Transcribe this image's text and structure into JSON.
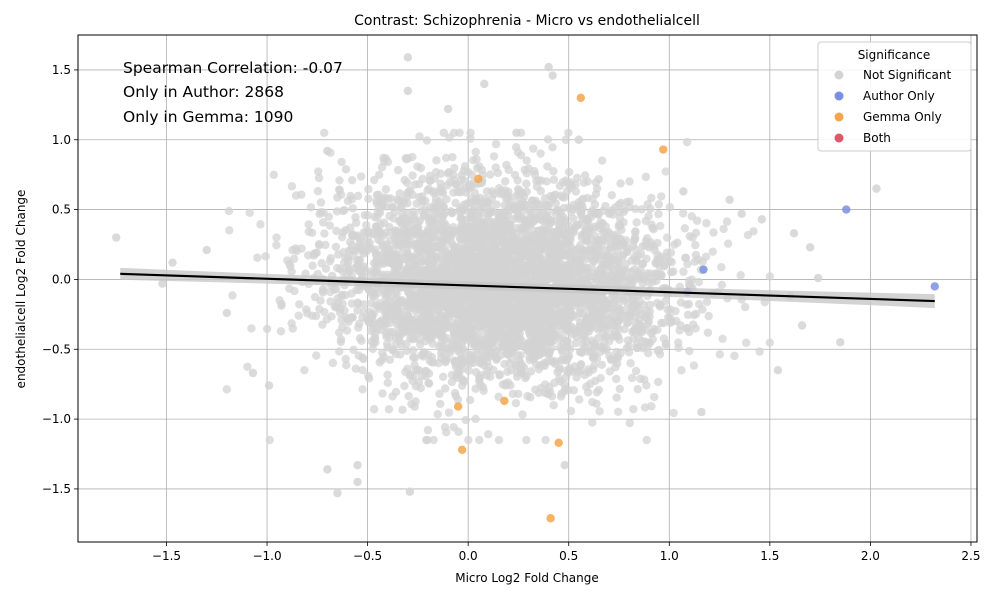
{
  "chart_data": {
    "type": "scatter",
    "title": "Contrast: Schizophrenia - Micro vs endothelialcell",
    "xlabel": "Micro Log2 Fold Change",
    "ylabel": "endothelialcell Log2 Fold Change",
    "xlim": [
      -1.94,
      2.53
    ],
    "ylim": [
      -1.88,
      1.75
    ],
    "xticks": [
      -1.5,
      -1.0,
      -0.5,
      0.0,
      0.5,
      1.0,
      1.5,
      2.0,
      2.5
    ],
    "xtick_labels": [
      "−1.5",
      "−1.0",
      "−0.5",
      "0.0",
      "0.5",
      "1.0",
      "1.5",
      "2.0",
      "2.5"
    ],
    "yticks": [
      -1.5,
      -1.0,
      -0.5,
      0.0,
      0.5,
      1.0,
      1.5
    ],
    "ytick_labels": [
      "−1.5",
      "−1.0",
      "−0.5",
      "0.0",
      "0.5",
      "1.0",
      "1.5"
    ],
    "grid": true,
    "annotations": [
      "Spearman Correlation: -0.07",
      "Only in Author: 2868",
      "Only in Gemma: 1090"
    ],
    "legend": {
      "title": "Significance",
      "placement": "top-right",
      "entries": [
        "Not Significant",
        "Author Only",
        "Gemma Only",
        "Both"
      ]
    },
    "colors": {
      "not_significant": "#d3d3d3",
      "author_only": "#7b8fe0",
      "gemma_only": "#f5a54a",
      "both": "#e0566a",
      "regression": "#000000",
      "ci_band": "#c8c8c8"
    },
    "regression_line": {
      "x": [
        -1.73,
        2.32
      ],
      "y": [
        0.04,
        -0.155
      ]
    },
    "series": [
      {
        "name": "Author Only",
        "points": [
          [
            1.88,
            0.5
          ],
          [
            2.32,
            -0.05
          ],
          [
            1.17,
            0.07
          ],
          [
            1.09,
            -0.09
          ]
        ]
      },
      {
        "name": "Gemma Only",
        "points": [
          [
            0.56,
            1.3
          ],
          [
            0.97,
            0.93
          ],
          [
            0.05,
            0.72
          ],
          [
            -0.05,
            -0.91
          ],
          [
            0.18,
            -0.87
          ],
          [
            -0.03,
            -1.22
          ],
          [
            0.45,
            -1.17
          ],
          [
            0.41,
            -1.71
          ]
        ]
      },
      {
        "name": "Not Significant",
        "points": [
          [
            -0.3,
            1.59
          ],
          [
            0.4,
            1.52
          ],
          [
            0.42,
            1.46
          ],
          [
            -0.3,
            1.35
          ],
          [
            0.08,
            1.4
          ],
          [
            -0.1,
            1.22
          ],
          [
            0.24,
            1.05
          ],
          [
            0.55,
            1.0
          ],
          [
            -0.7,
            0.92
          ],
          [
            2.03,
            0.65
          ],
          [
            -1.75,
            0.3
          ],
          [
            -1.52,
            -0.03
          ],
          [
            -1.2,
            -0.24
          ],
          [
            -1.07,
            -0.67
          ],
          [
            -0.99,
            -0.76
          ],
          [
            -0.7,
            -1.36
          ],
          [
            -0.65,
            -1.53
          ],
          [
            -0.29,
            -1.52
          ],
          [
            1.16,
            -0.95
          ],
          [
            1.54,
            -0.65
          ],
          [
            1.85,
            -0.45
          ],
          [
            1.66,
            -0.33
          ],
          [
            1.74,
            0.01
          ],
          [
            1.6,
            -0.12
          ],
          [
            1.46,
            0.43
          ],
          [
            1.7,
            0.23
          ],
          [
            1.62,
            0.33
          ],
          [
            1.36,
            0.47
          ],
          [
            1.3,
            0.57
          ],
          [
            1.07,
            0.63
          ],
          [
            -0.55,
            -1.45
          ],
          [
            -0.55,
            -1.33
          ],
          [
            0.48,
            -1.33
          ],
          [
            -1.3,
            0.21
          ],
          [
            -1.47,
            0.12
          ]
        ]
      }
    ],
    "background_cloud": {
      "series": "Not Significant",
      "count": 4200,
      "center": [
        0.15,
        -0.02
      ],
      "spread": [
        0.42,
        0.36
      ],
      "seed": 7
    }
  }
}
